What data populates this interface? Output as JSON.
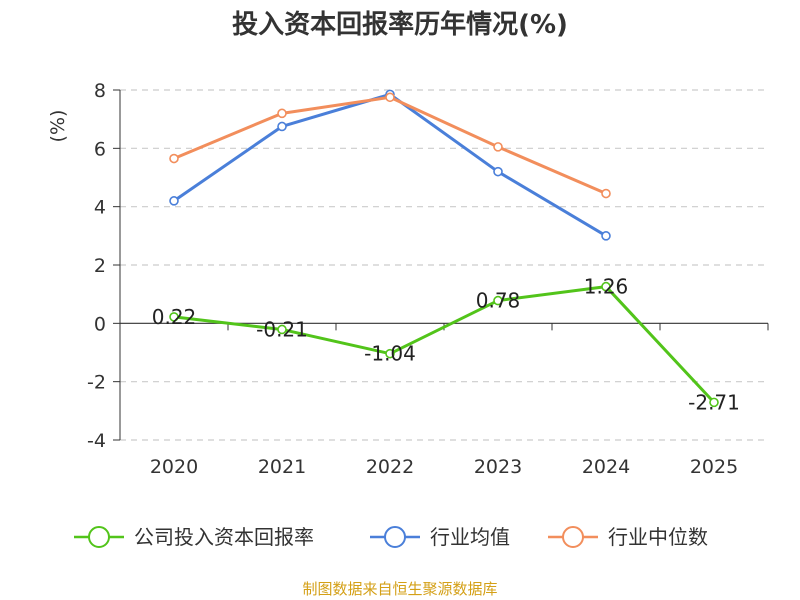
{
  "chart_data": {
    "type": "line",
    "title": "投入资本回报率历年情况(%)",
    "ylabel": "(%)",
    "categories": [
      "2020",
      "2021",
      "2022",
      "2023",
      "2024",
      "2025"
    ],
    "ylim": [
      -4,
      8
    ],
    "yticks": [
      -4,
      -2,
      0,
      2,
      4,
      6,
      8
    ],
    "grid": true,
    "legend_position": "bottom",
    "series": [
      {
        "name": "公司投入资本回报率",
        "color": "#52c41a",
        "values": [
          0.22,
          -0.21,
          -1.04,
          0.78,
          1.26,
          -2.71
        ],
        "labels": [
          "0.22",
          "-0.21",
          "-1.04",
          "0.78",
          "1.26",
          "-2.71"
        ]
      },
      {
        "name": "行业均值",
        "color": "#4a7fd9",
        "values": [
          4.2,
          6.75,
          7.85,
          5.2,
          3.0,
          null
        ]
      },
      {
        "name": "行业中位数",
        "color": "#f28e5c",
        "values": [
          5.65,
          7.2,
          7.75,
          6.05,
          4.45,
          null
        ]
      }
    ]
  },
  "source": "制图数据来自恒生聚源数据库",
  "colors": {
    "source": "#d4a017",
    "ylabel": "#e02020",
    "grid": "#cccccc",
    "axis": "#333333"
  }
}
